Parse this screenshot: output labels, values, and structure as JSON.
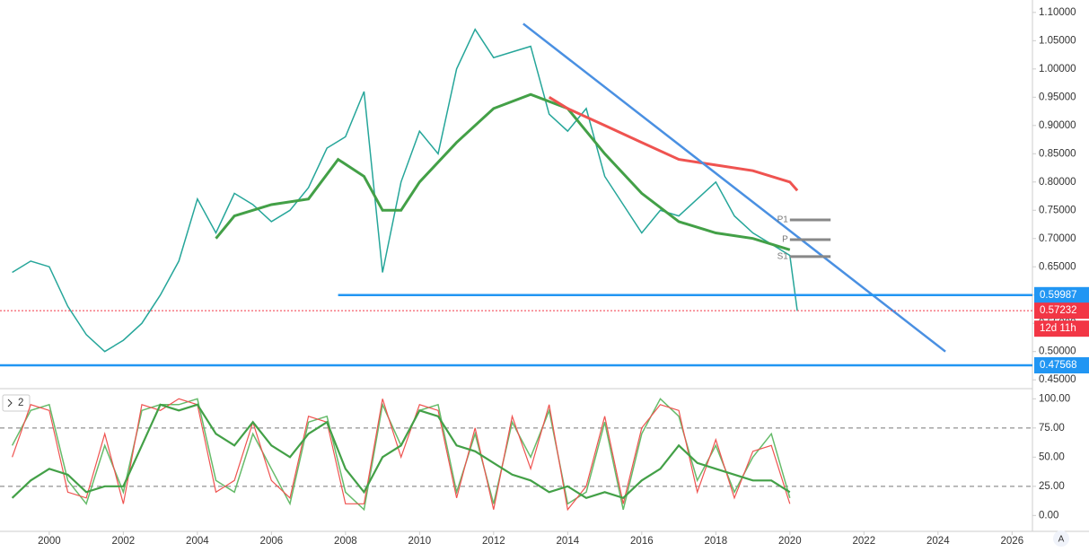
{
  "chart_data": [
    {
      "type": "line",
      "xlim": [
        1998.67,
        2026.55
      ],
      "ylim": [
        0.436,
        1.122
      ],
      "xticks": [
        2000,
        2002,
        2004,
        2006,
        2008,
        2010,
        2012,
        2014,
        2016,
        2018,
        2020,
        2022,
        2024,
        2026
      ],
      "yticks": [
        {
          "value": 0.45,
          "label": "0.45000"
        },
        {
          "value": 0.5,
          "label": "0.50000"
        },
        {
          "value": 0.55,
          "label": "0.55000"
        },
        {
          "value": 0.6,
          "label": "0.60000"
        },
        {
          "value": 0.65,
          "label": "0.65000"
        },
        {
          "value": 0.7,
          "label": "0.70000"
        },
        {
          "value": 0.75,
          "label": "0.75000"
        },
        {
          "value": 0.8,
          "label": "0.80000"
        },
        {
          "value": 0.85,
          "label": "0.85000"
        },
        {
          "value": 0.9,
          "label": "0.90000"
        },
        {
          "value": 0.95,
          "label": "0.95000"
        },
        {
          "value": 1.0,
          "label": "1.00000"
        },
        {
          "value": 1.05,
          "label": "1.05000"
        },
        {
          "value": 1.1,
          "label": "1.10000"
        }
      ],
      "series": [
        {
          "color": "#26a69a",
          "x": [
            1999,
            1999.5,
            2000,
            2000.5,
            2001,
            2001.5,
            2002,
            2002.5,
            2003,
            2003.5,
            2004,
            2004.5,
            2005,
            2005.5,
            2006,
            2006.5,
            2007,
            2007.5,
            2008,
            2008.5,
            2008.75,
            2009,
            2009.5,
            2010,
            2010.5,
            2011,
            2011.5,
            2012,
            2012.5,
            2013,
            2013.5,
            2014,
            2014.5,
            2015,
            2015.5,
            2016,
            2016.5,
            2017,
            2017.5,
            2018,
            2018.5,
            2019,
            2019.5,
            2020,
            2020.2
          ],
          "values": [
            0.64,
            0.66,
            0.65,
            0.58,
            0.53,
            0.5,
            0.52,
            0.55,
            0.6,
            0.66,
            0.77,
            0.71,
            0.78,
            0.76,
            0.73,
            0.75,
            0.79,
            0.86,
            0.88,
            0.96,
            0.8,
            0.64,
            0.8,
            0.89,
            0.85,
            1.0,
            1.07,
            1.02,
            1.03,
            1.04,
            0.92,
            0.89,
            0.93,
            0.81,
            0.76,
            0.71,
            0.75,
            0.74,
            0.77,
            0.8,
            0.74,
            0.71,
            0.69,
            0.67,
            0.572
          ]
        },
        {
          "color": "#43a047",
          "x": [
            2004.5,
            2005,
            2006,
            2007,
            2007.8,
            2008.5,
            2009,
            2009.5,
            2010,
            2011,
            2012,
            2013,
            2014,
            2015,
            2016,
            2017,
            2018,
            2019,
            2020
          ],
          "values": [
            0.7,
            0.74,
            0.76,
            0.77,
            0.84,
            0.81,
            0.75,
            0.75,
            0.8,
            0.87,
            0.93,
            0.955,
            0.93,
            0.85,
            0.78,
            0.73,
            0.71,
            0.7,
            0.68
          ]
        },
        {
          "color": "#ef5350",
          "x": [
            2013.5,
            2014,
            2015,
            2016,
            2017,
            2018,
            2019,
            2020,
            2020.2
          ],
          "values": [
            0.95,
            0.93,
            0.9,
            0.87,
            0.84,
            0.83,
            0.82,
            0.8,
            0.785
          ]
        }
      ],
      "hlines": [
        {
          "value": 0.59987,
          "color": "#2196f3"
        },
        {
          "value": 0.47568,
          "color": "#2196f3"
        },
        {
          "value": 0.57232,
          "color": "#f23645"
        }
      ],
      "countdown": "12d 11h",
      "trendlines": [
        {
          "x": [
            2012.8,
            2024.2
          ],
          "values": [
            1.08,
            0.5
          ],
          "color": "#4a90e2"
        }
      ],
      "pivots": [
        {
          "label": "P1",
          "value": 0.733
        },
        {
          "label": "P",
          "value": 0.698
        },
        {
          "label": "S1",
          "value": 0.668
        }
      ]
    },
    {
      "type": "line",
      "pane_label": "2",
      "xlim": [
        1998.67,
        2026.55
      ],
      "ylim": [
        -13.6,
        106.4
      ],
      "yticks": [
        {
          "value": 0,
          "label": "0.00"
        },
        {
          "value": 25,
          "label": "25.00"
        },
        {
          "value": 50,
          "label": "50.00"
        },
        {
          "value": 75,
          "label": "75.00"
        },
        {
          "value": 100,
          "label": "100.00"
        }
      ],
      "levels": [
        75,
        25
      ],
      "series": [
        {
          "color": "#66bb6a",
          "x": [
            1999,
            1999.5,
            2000,
            2000.5,
            2001,
            2001.5,
            2002,
            2002.5,
            2003,
            2003.5,
            2004,
            2004.5,
            2005,
            2005.5,
            2006,
            2006.5,
            2007,
            2007.5,
            2008,
            2008.5,
            2009,
            2009.5,
            2010,
            2010.5,
            2011,
            2011.5,
            2012,
            2012.5,
            2013,
            2013.5,
            2014,
            2014.5,
            2015,
            2015.5,
            2016,
            2016.5,
            2017,
            2017.5,
            2018,
            2018.5,
            2019,
            2019.5,
            2020
          ],
          "values": [
            60,
            90,
            95,
            30,
            10,
            60,
            20,
            90,
            95,
            95,
            100,
            30,
            20,
            70,
            40,
            10,
            80,
            85,
            20,
            5,
            95,
            60,
            90,
            95,
            20,
            70,
            10,
            80,
            50,
            90,
            10,
            20,
            80,
            5,
            70,
            100,
            85,
            30,
            60,
            20,
            50,
            70,
            15
          ]
        },
        {
          "color": "#ef5350",
          "x": [
            1999,
            1999.5,
            2000,
            2000.5,
            2001,
            2001.5,
            2002,
            2002.5,
            2003,
            2003.5,
            2004,
            2004.5,
            2005,
            2005.5,
            2006,
            2006.5,
            2007,
            2007.5,
            2008,
            2008.5,
            2009,
            2009.5,
            2010,
            2010.5,
            2011,
            2011.5,
            2012,
            2012.5,
            2013,
            2013.5,
            2014,
            2014.5,
            2015,
            2015.5,
            2016,
            2016.5,
            2017,
            2017.5,
            2018,
            2018.5,
            2019,
            2019.5,
            2020
          ],
          "values": [
            50,
            95,
            90,
            20,
            15,
            70,
            10,
            95,
            90,
            100,
            95,
            20,
            30,
            80,
            30,
            15,
            85,
            80,
            10,
            10,
            100,
            50,
            95,
            90,
            15,
            75,
            5,
            85,
            40,
            95,
            5,
            25,
            85,
            10,
            75,
            95,
            90,
            20,
            65,
            15,
            55,
            60,
            10
          ]
        },
        {
          "color": "#43a047",
          "x": [
            1999,
            1999.5,
            2000,
            2000.5,
            2001,
            2001.5,
            2002,
            2002.5,
            2003,
            2003.5,
            2004,
            2004.5,
            2005,
            2005.5,
            2006,
            2006.5,
            2007,
            2007.5,
            2008,
            2008.5,
            2009,
            2009.5,
            2010,
            2010.5,
            2011,
            2011.5,
            2012,
            2012.5,
            2013,
            2013.5,
            2014,
            2014.5,
            2015,
            2015.5,
            2016,
            2016.5,
            2017,
            2017.5,
            2018,
            2018.5,
            2019,
            2019.5,
            2020
          ],
          "values": [
            15,
            30,
            40,
            35,
            20,
            25,
            25,
            60,
            95,
            90,
            95,
            70,
            60,
            80,
            60,
            50,
            70,
            80,
            40,
            20,
            50,
            60,
            90,
            85,
            60,
            55,
            45,
            35,
            30,
            20,
            25,
            15,
            20,
            15,
            30,
            40,
            60,
            45,
            40,
            35,
            30,
            30,
            20
          ]
        }
      ]
    }
  ]
}
